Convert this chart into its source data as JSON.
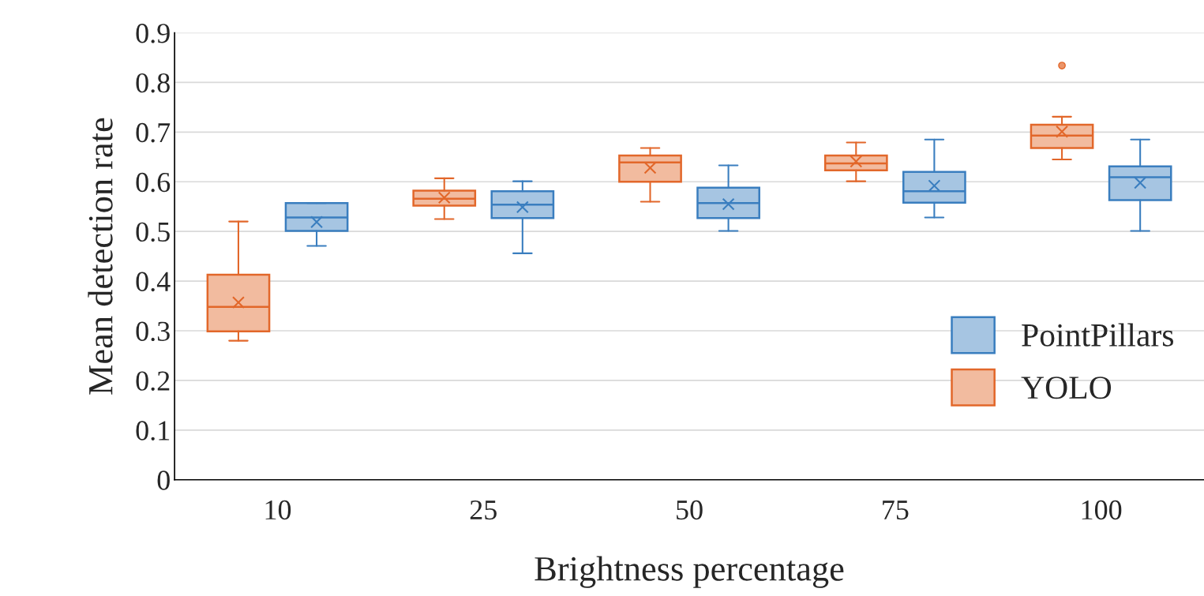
{
  "chart_data": {
    "type": "box",
    "xlabel": "Brightness percentage",
    "ylabel": "Mean detection rate",
    "categories": [
      "10",
      "25",
      "50",
      "75",
      "100"
    ],
    "ylim": [
      0,
      0.9
    ],
    "yticks": [
      0,
      0.1,
      0.2,
      0.3,
      0.4,
      0.5,
      0.6,
      0.7,
      0.8,
      0.9
    ],
    "grid": "y",
    "legend": "bottom right",
    "marker": "cross",
    "series": [
      {
        "name": "YOLO",
        "color": "#e2672a",
        "boxes": [
          {
            "low": 0.28,
            "q1": 0.299,
            "median": 0.348,
            "q3": 0.413,
            "high": 0.52,
            "mean": 0.357
          },
          {
            "low": 0.525,
            "q1": 0.552,
            "median": 0.566,
            "q3": 0.582,
            "high": 0.607,
            "mean": 0.568
          },
          {
            "low": 0.56,
            "q1": 0.6,
            "median": 0.639,
            "q3": 0.653,
            "high": 0.668,
            "mean": 0.628
          },
          {
            "low": 0.601,
            "q1": 0.623,
            "median": 0.637,
            "q3": 0.653,
            "high": 0.679,
            "mean": 0.641
          },
          {
            "low": 0.645,
            "q1": 0.668,
            "median": 0.693,
            "q3": 0.715,
            "high": 0.731,
            "mean": 0.701,
            "outliers": [
              0.834
            ]
          }
        ]
      },
      {
        "name": "PointPillars",
        "color": "#3a7ebf",
        "boxes": [
          {
            "low": 0.471,
            "q1": 0.501,
            "median": 0.528,
            "q3": 0.557,
            "high": 0.557,
            "mean": 0.519
          },
          {
            "low": 0.456,
            "q1": 0.527,
            "median": 0.554,
            "q3": 0.581,
            "high": 0.601,
            "mean": 0.549
          },
          {
            "low": 0.501,
            "q1": 0.527,
            "median": 0.557,
            "q3": 0.588,
            "high": 0.633,
            "mean": 0.555
          },
          {
            "low": 0.528,
            "q1": 0.558,
            "median": 0.581,
            "q3": 0.62,
            "high": 0.685,
            "mean": 0.592
          },
          {
            "low": 0.501,
            "q1": 0.563,
            "median": 0.609,
            "q3": 0.631,
            "high": 0.685,
            "mean": 0.598
          }
        ]
      }
    ]
  }
}
